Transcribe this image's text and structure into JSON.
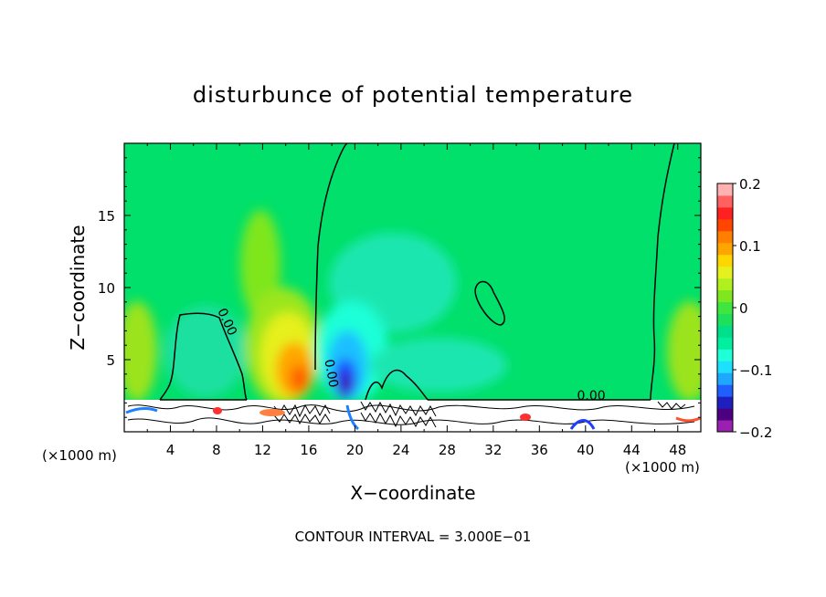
{
  "chart_data": {
    "type": "heatmap",
    "title": "disturbunce of potential temperature",
    "xlabel": "X−coordinate",
    "ylabel": "Z−coordinate",
    "x_unit_left": "(×1000 m)",
    "x_unit_right": "(×1000 m)",
    "xlim": [
      0,
      50
    ],
    "ylim": [
      0,
      20
    ],
    "x_ticks": [
      4,
      8,
      12,
      16,
      20,
      24,
      28,
      32,
      36,
      40,
      44,
      48
    ],
    "y_ticks": [
      5,
      10,
      15
    ],
    "colorbar": {
      "min": -0.2,
      "max": 0.2,
      "ticks": [
        {
          "value": 0.2,
          "label": "0.2"
        },
        {
          "value": 0.1,
          "label": "0.1"
        },
        {
          "value": 0,
          "label": "0"
        },
        {
          "value": -0.1,
          "label": "−0.1"
        },
        {
          "value": -0.2,
          "label": "−0.2"
        }
      ],
      "colors": [
        "#9b1fb0",
        "#4b0082",
        "#1f1fbf",
        "#1f5fff",
        "#1fa7ff",
        "#1fdfff",
        "#1fffd8",
        "#00f0a0",
        "#00e08a",
        "#1fe05a",
        "#3fe63f",
        "#7fe61f",
        "#b0f01f",
        "#e6f01f",
        "#ffd700",
        "#ffa500",
        "#ff7f00",
        "#ff4500",
        "#ff2020",
        "#ff6060",
        "#ffb0b0"
      ]
    },
    "contour_labels": [
      {
        "x": 8.6,
        "y": 7.5,
        "label": "0.00",
        "rotate": 65
      },
      {
        "x": 17.6,
        "y": 4.0,
        "label": "0.00",
        "rotate": 80
      },
      {
        "x": 40.5,
        "y": 2.2,
        "label": "0.00",
        "rotate": 0
      }
    ],
    "footer": "CONTOUR INTERVAL = 3.000E−01"
  }
}
